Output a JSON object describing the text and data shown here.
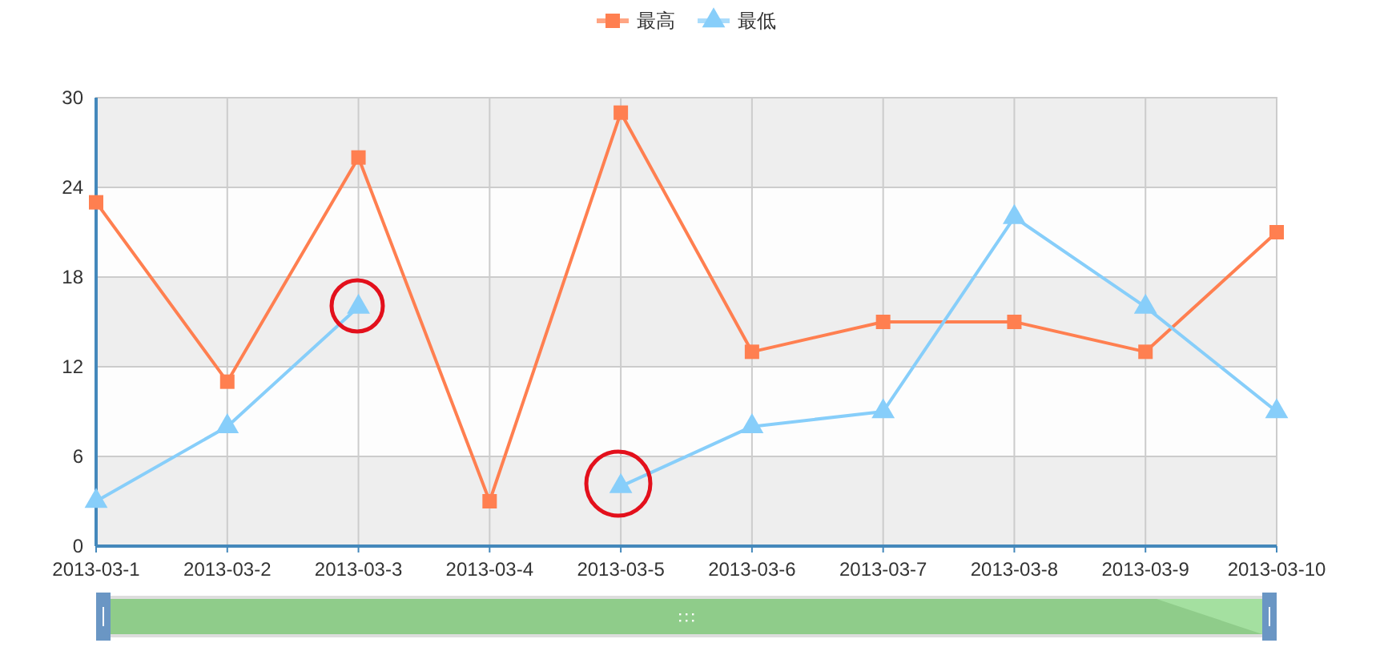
{
  "chart_data": {
    "type": "line",
    "categories": [
      "2013-03-1",
      "2013-03-2",
      "2013-03-3",
      "2013-03-4",
      "2013-03-5",
      "2013-03-6",
      "2013-03-7",
      "2013-03-8",
      "2013-03-9",
      "2013-03-10"
    ],
    "series": [
      {
        "name": "最高",
        "color": "#ff7f50",
        "marker": "square",
        "values": [
          23,
          11,
          26,
          3,
          29,
          13,
          15,
          15,
          13,
          21
        ]
      },
      {
        "name": "最低",
        "color": "#87cefa",
        "marker": "triangle",
        "values": [
          3,
          8,
          16,
          null,
          4,
          8,
          9,
          22,
          16,
          9
        ]
      }
    ],
    "ylim": [
      0,
      30
    ],
    "yticks": [
      0,
      6,
      12,
      18,
      24,
      30
    ],
    "grid": true,
    "legend": "top",
    "line_style": "solid"
  }
}
